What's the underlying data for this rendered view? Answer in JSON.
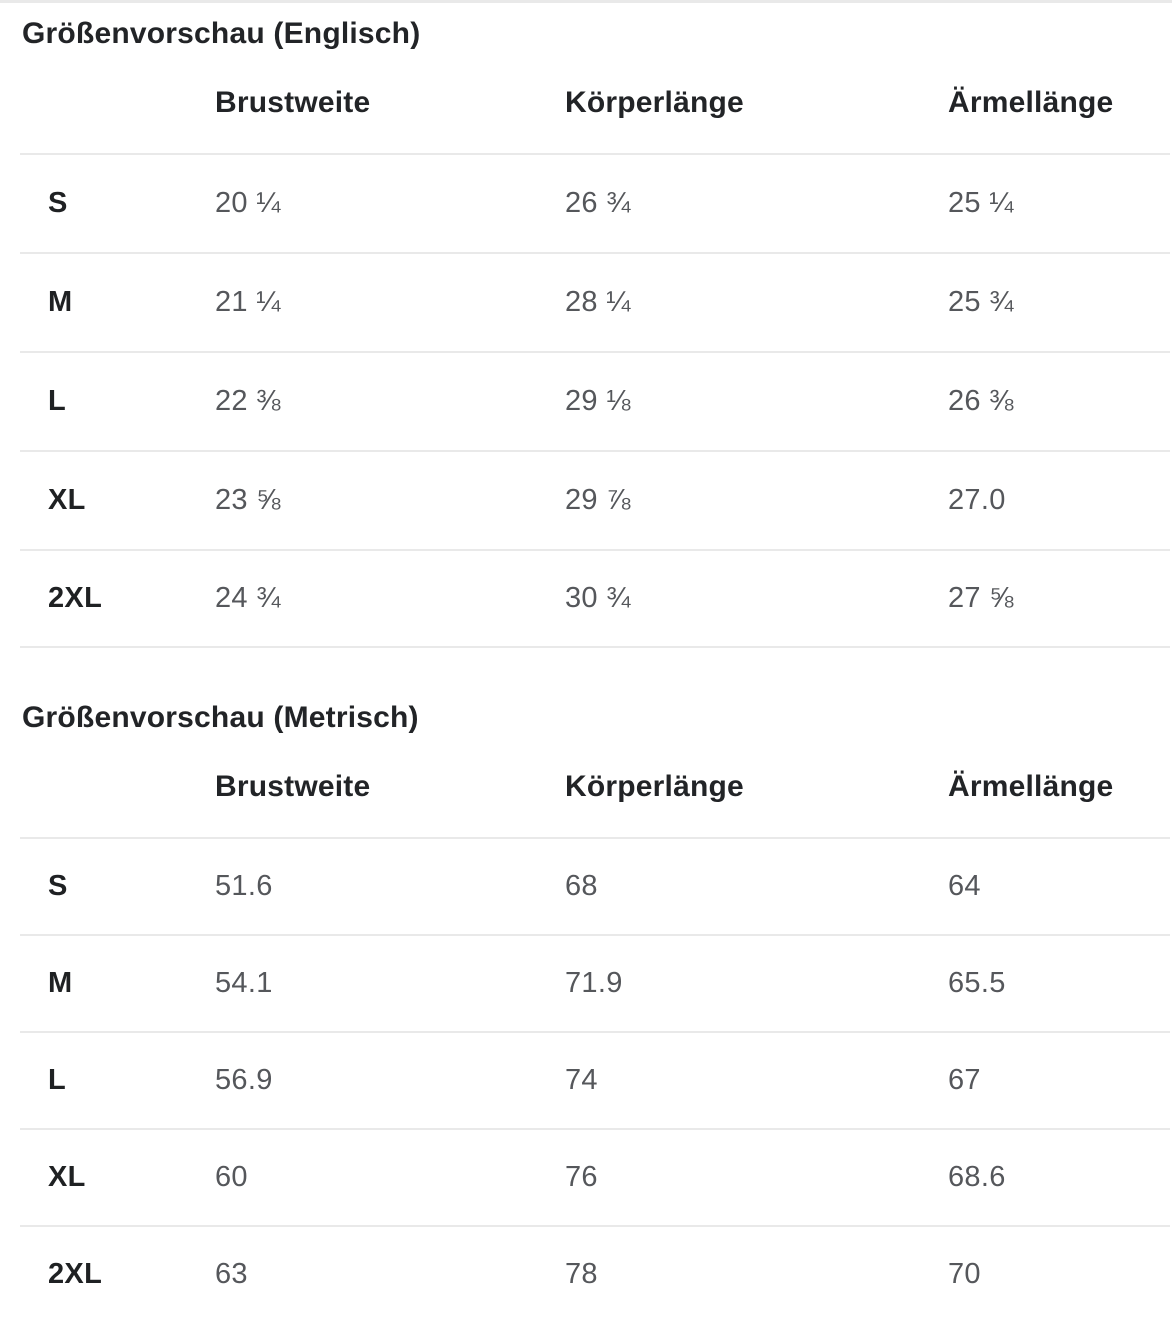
{
  "colors": {
    "heading_text": "#222427",
    "value_text": "#55575b",
    "divider": "#e9e9e9",
    "background": "#ffffff"
  },
  "sections": [
    {
      "title": "Größenvorschau (Englisch)",
      "columns": [
        "Brustweite",
        "Körperlänge",
        "Ärmellänge"
      ],
      "rows": [
        {
          "size": "S",
          "values": [
            "20 ¼",
            "26 ¾",
            "25 ¼"
          ]
        },
        {
          "size": "M",
          "values": [
            "21 ¼",
            "28 ¼",
            "25 ¾"
          ]
        },
        {
          "size": "L",
          "values": [
            "22 ⅜",
            "29 ⅛",
            "26 ⅜"
          ]
        },
        {
          "size": "XL",
          "values": [
            "23 ⅝",
            "29 ⅞",
            "27.0"
          ]
        },
        {
          "size": "2XL",
          "values": [
            "24 ¾",
            "30 ¾",
            "27 ⅝"
          ]
        }
      ]
    },
    {
      "title": "Größenvorschau (Metrisch)",
      "columns": [
        "Brustweite",
        "Körperlänge",
        "Ärmellänge"
      ],
      "rows": [
        {
          "size": "S",
          "values": [
            "51.6",
            "68",
            "64"
          ]
        },
        {
          "size": "M",
          "values": [
            "54.1",
            "71.9",
            "65.5"
          ]
        },
        {
          "size": "L",
          "values": [
            "56.9",
            "74",
            "67"
          ]
        },
        {
          "size": "XL",
          "values": [
            "60",
            "76",
            "68.6"
          ]
        },
        {
          "size": "2XL",
          "values": [
            "63",
            "78",
            "70"
          ]
        }
      ]
    }
  ]
}
